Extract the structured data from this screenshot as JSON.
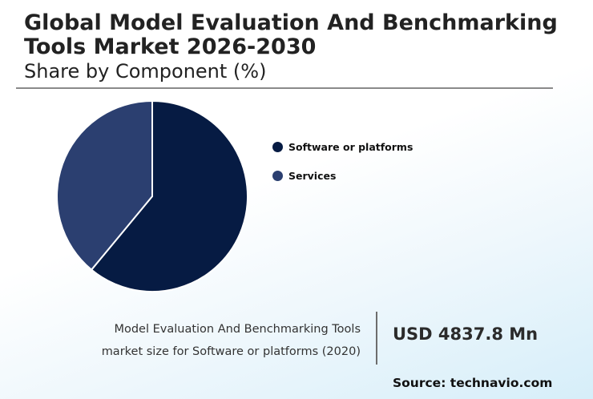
{
  "header": {
    "title": "Global Model Evaluation And Benchmarking Tools Market 2026-2030",
    "subtitle": "Share by Component (%)"
  },
  "chart_data": {
    "type": "pie",
    "title": "Share by Component (%)",
    "categories": [
      "Software or platforms",
      "Services"
    ],
    "values": [
      61,
      39
    ],
    "colors": [
      "#061b43",
      "#2b3f70"
    ],
    "legend": "right"
  },
  "footer": {
    "caption_line1": "Model Evaluation And Benchmarking Tools",
    "caption_line2": "market size for Software or platforms (2020)",
    "value": "USD 4837.8 Mn",
    "source": "Source: technavio.com"
  }
}
